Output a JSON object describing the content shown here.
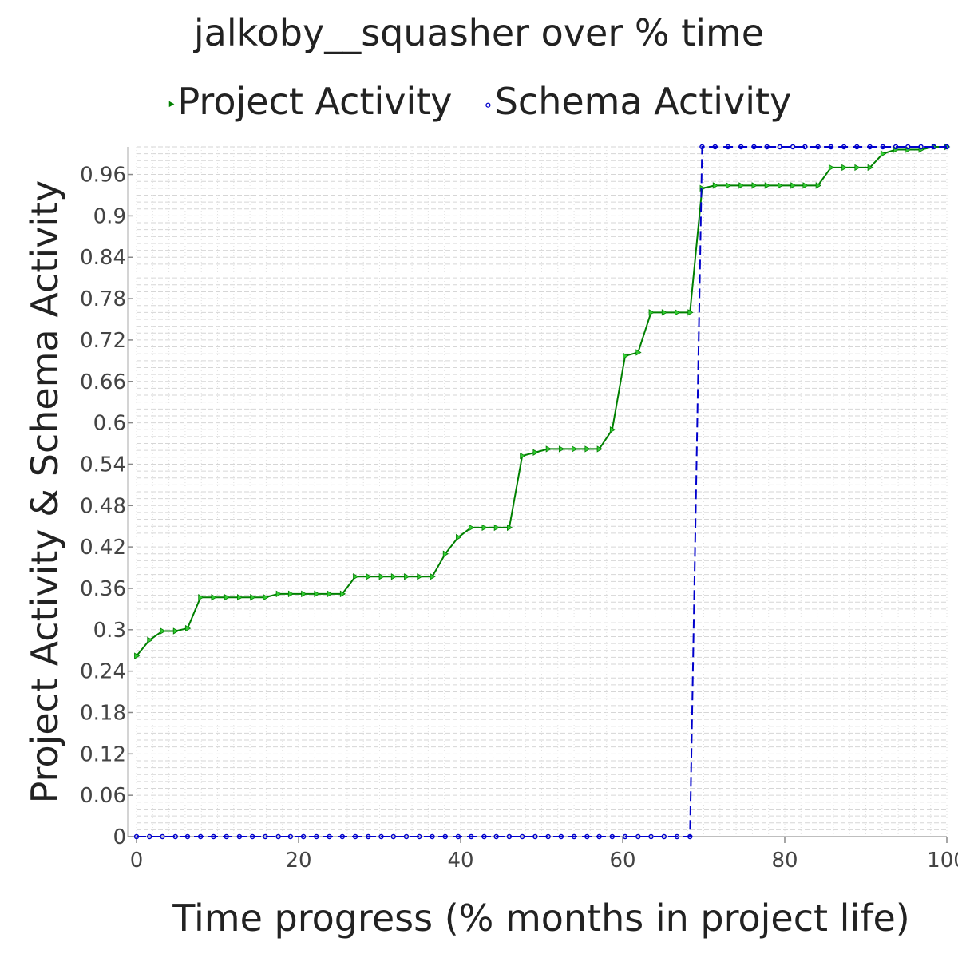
{
  "chart_data": {
    "type": "line",
    "title": "jalkoby__squasher over % time",
    "xlabel": "Time progress (% months in project life)",
    "ylabel": "Project Activity & Schema Activity",
    "xlim": [
      0,
      100
    ],
    "ylim": [
      0,
      1
    ],
    "x_ticks": [
      0,
      20,
      40,
      60,
      80,
      100
    ],
    "x_tick_labels": [
      "0",
      "20",
      "40",
      "60",
      "80",
      "100"
    ],
    "y_ticks": [
      0,
      0.06,
      0.12,
      0.18,
      0.24,
      0.3,
      0.36,
      0.42,
      0.48,
      0.54,
      0.6,
      0.66,
      0.72,
      0.78,
      0.84,
      0.9,
      0.96
    ],
    "y_tick_labels": [
      "0",
      "0.06",
      "0.12",
      "0.18",
      "0.24",
      "0.3",
      "0.36",
      "0.42",
      "0.48",
      "0.54",
      "0.6",
      "0.66",
      "0.72",
      "0.78",
      "0.84",
      "0.9",
      "0.96"
    ],
    "grid": true,
    "legend_position": "top",
    "series": [
      {
        "name": "Project Activity",
        "color": "#008000",
        "marker": "triangle-right",
        "line_style": "solid",
        "points": [
          [
            0,
            0.262
          ],
          [
            1.6,
            0.285
          ],
          [
            3.2,
            0.298
          ],
          [
            4.8,
            0.298
          ],
          [
            6.3,
            0.302
          ],
          [
            7.9,
            0.347
          ],
          [
            9.5,
            0.347
          ],
          [
            11.1,
            0.347
          ],
          [
            12.7,
            0.347
          ],
          [
            14.3,
            0.347
          ],
          [
            15.9,
            0.347
          ],
          [
            17.5,
            0.352
          ],
          [
            19.0,
            0.352
          ],
          [
            20.6,
            0.352
          ],
          [
            22.2,
            0.352
          ],
          [
            23.8,
            0.352
          ],
          [
            25.4,
            0.352
          ],
          [
            27.0,
            0.377
          ],
          [
            28.6,
            0.377
          ],
          [
            30.2,
            0.377
          ],
          [
            31.7,
            0.377
          ],
          [
            33.3,
            0.377
          ],
          [
            34.9,
            0.377
          ],
          [
            36.5,
            0.377
          ],
          [
            38.1,
            0.41
          ],
          [
            39.7,
            0.434
          ],
          [
            41.3,
            0.448
          ],
          [
            42.9,
            0.448
          ],
          [
            44.4,
            0.448
          ],
          [
            46.0,
            0.448
          ],
          [
            47.6,
            0.552
          ],
          [
            49.2,
            0.557
          ],
          [
            50.8,
            0.562
          ],
          [
            52.4,
            0.562
          ],
          [
            54.0,
            0.562
          ],
          [
            55.6,
            0.562
          ],
          [
            57.1,
            0.562
          ],
          [
            58.7,
            0.59
          ],
          [
            60.3,
            0.697
          ],
          [
            61.9,
            0.702
          ],
          [
            63.5,
            0.76
          ],
          [
            65.1,
            0.76
          ],
          [
            66.7,
            0.76
          ],
          [
            68.3,
            0.76
          ],
          [
            69.8,
            0.94
          ],
          [
            71.4,
            0.944
          ],
          [
            73.0,
            0.944
          ],
          [
            74.6,
            0.944
          ],
          [
            76.2,
            0.944
          ],
          [
            77.8,
            0.944
          ],
          [
            79.4,
            0.944
          ],
          [
            81.0,
            0.944
          ],
          [
            82.5,
            0.944
          ],
          [
            84.1,
            0.944
          ],
          [
            85.7,
            0.97
          ],
          [
            87.3,
            0.97
          ],
          [
            88.9,
            0.97
          ],
          [
            90.5,
            0.97
          ],
          [
            92.1,
            0.99
          ],
          [
            93.7,
            0.996
          ],
          [
            95.2,
            0.996
          ],
          [
            96.8,
            0.996
          ],
          [
            98.4,
            1.0
          ],
          [
            100,
            1.0
          ]
        ]
      },
      {
        "name": "Schema Activity",
        "color": "#0000cc",
        "marker": "circle",
        "line_style": "dashed",
        "points": [
          [
            0,
            0
          ],
          [
            1.6,
            0
          ],
          [
            3.2,
            0
          ],
          [
            4.8,
            0
          ],
          [
            6.3,
            0
          ],
          [
            7.9,
            0
          ],
          [
            9.5,
            0
          ],
          [
            11.1,
            0
          ],
          [
            12.7,
            0
          ],
          [
            14.3,
            0
          ],
          [
            15.9,
            0
          ],
          [
            17.5,
            0
          ],
          [
            19.0,
            0
          ],
          [
            20.6,
            0
          ],
          [
            22.2,
            0
          ],
          [
            23.8,
            0
          ],
          [
            25.4,
            0
          ],
          [
            27.0,
            0
          ],
          [
            28.6,
            0
          ],
          [
            30.2,
            0
          ],
          [
            31.7,
            0
          ],
          [
            33.3,
            0
          ],
          [
            34.9,
            0
          ],
          [
            36.5,
            0
          ],
          [
            38.1,
            0
          ],
          [
            39.7,
            0
          ],
          [
            41.3,
            0
          ],
          [
            42.9,
            0
          ],
          [
            44.4,
            0
          ],
          [
            46.0,
            0
          ],
          [
            47.6,
            0
          ],
          [
            49.2,
            0
          ],
          [
            50.8,
            0
          ],
          [
            52.4,
            0
          ],
          [
            54.0,
            0
          ],
          [
            55.6,
            0
          ],
          [
            57.1,
            0
          ],
          [
            58.7,
            0
          ],
          [
            60.3,
            0
          ],
          [
            61.9,
            0
          ],
          [
            63.5,
            0
          ],
          [
            65.1,
            0
          ],
          [
            66.7,
            0
          ],
          [
            68.3,
            0
          ],
          [
            69.8,
            1.0
          ],
          [
            71.4,
            1.0
          ],
          [
            73.0,
            1.0
          ],
          [
            74.6,
            1.0
          ],
          [
            76.2,
            1.0
          ],
          [
            77.8,
            1.0
          ],
          [
            79.4,
            1.0
          ],
          [
            81.0,
            1.0
          ],
          [
            82.5,
            1.0
          ],
          [
            84.1,
            1.0
          ],
          [
            85.7,
            1.0
          ],
          [
            87.3,
            1.0
          ],
          [
            88.9,
            1.0
          ],
          [
            90.5,
            1.0
          ],
          [
            92.1,
            1.0
          ],
          [
            93.7,
            1.0
          ],
          [
            95.2,
            1.0
          ],
          [
            96.8,
            1.0
          ],
          [
            98.4,
            1.0
          ],
          [
            100,
            1.0
          ]
        ]
      }
    ]
  },
  "legend": {
    "items": [
      {
        "label": "Project Activity",
        "symbol": "‣",
        "color": "#008000"
      },
      {
        "label": "Schema Activity",
        "symbol": "∘",
        "color": "#0000cc"
      }
    ]
  }
}
